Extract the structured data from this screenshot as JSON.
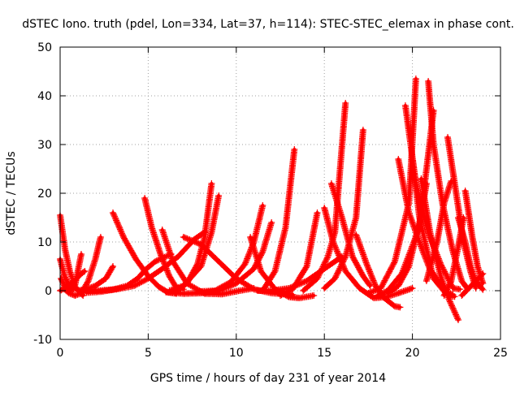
{
  "chart_data": {
    "type": "scatter",
    "title": "dSTEC Iono. truth (pdel, Lon=334, Lat=37, h=114): STEC-STEC_elemax in phase cont.",
    "xlabel": "GPS time / hours of day 231 of year 2014",
    "ylabel": "dSTEC  / TECUs",
    "xlim": [
      0,
      25
    ],
    "ylim": [
      -10,
      50
    ],
    "xticks": [
      0,
      5,
      10,
      15,
      20,
      25
    ],
    "yticks": [
      -10,
      0,
      10,
      20,
      30,
      40,
      50
    ],
    "grid": true,
    "marker": "+",
    "color": "#ff0000",
    "series": [
      {
        "x": [
          0.0,
          0.28,
          0.55,
          0.82,
          1.1,
          1.3
        ],
        "y": [
          15.5,
          8.5,
          4.0,
          1.0,
          -0.3,
          -1.0
        ]
      },
      {
        "x": [
          0.0,
          0.25,
          0.5,
          0.7,
          0.9
        ],
        "y": [
          6.5,
          3.0,
          1.2,
          0.3,
          0.5
        ]
      },
      {
        "x": [
          0.05,
          0.3,
          0.55,
          0.85,
          1.2
        ],
        "y": [
          2.5,
          0.6,
          0.0,
          1.2,
          7.5
        ]
      },
      {
        "x": [
          0.2,
          0.5,
          0.85,
          1.2,
          1.6,
          2.0,
          2.3
        ],
        "y": [
          0.5,
          -0.5,
          -1.0,
          -0.5,
          2.0,
          6.5,
          11.0
        ]
      },
      {
        "x": [
          0.0,
          0.4,
          0.8,
          1.2,
          1.4
        ],
        "y": [
          0.0,
          0.8,
          2.0,
          3.5,
          4.0
        ]
      },
      {
        "x": [
          1.0,
          1.5,
          2.0,
          2.6,
          3.0
        ],
        "y": [
          0.0,
          0.3,
          1.0,
          2.5,
          5.0
        ]
      },
      {
        "x": [
          1.3,
          2.2,
          3.2,
          4.2,
          5.0,
          5.8,
          6.7,
          7.6,
          8.2
        ],
        "y": [
          0.0,
          0.0,
          0.3,
          1.0,
          2.5,
          4.5,
          7.0,
          10.5,
          12.0
        ]
      },
      {
        "x": [
          1.5,
          2.3,
          3.0,
          3.8,
          4.4,
          4.9,
          5.4,
          6.3
        ],
        "y": [
          -0.4,
          -0.2,
          0.2,
          1.0,
          2.5,
          4.5,
          6.0,
          7.5
        ]
      },
      {
        "x": [
          3.0,
          3.6,
          4.3,
          5.0,
          5.6,
          6.1,
          6.6
        ],
        "y": [
          16.0,
          11.0,
          6.5,
          3.0,
          0.8,
          -0.3,
          -0.6
        ]
      },
      {
        "x": [
          4.8,
          5.2,
          5.7,
          6.2,
          6.6,
          7.0
        ],
        "y": [
          19.0,
          13.0,
          7.5,
          3.0,
          0.6,
          0.3
        ]
      },
      {
        "x": [
          5.8,
          6.4,
          7.2,
          8.2,
          9.2,
          10.2,
          11.0
        ],
        "y": [
          12.5,
          6.0,
          1.5,
          -0.6,
          -0.7,
          0.0,
          0.5
        ]
      },
      {
        "x": [
          6.2,
          7.0,
          8.0,
          8.6,
          9.0
        ],
        "y": [
          0.0,
          1.0,
          5.0,
          12.0,
          19.5
        ]
      },
      {
        "x": [
          6.6,
          7.2,
          7.8,
          8.2,
          8.6
        ],
        "y": [
          0.0,
          1.5,
          5.5,
          11.0,
          22.0
        ]
      },
      {
        "x": [
          7.0,
          8.0,
          9.0,
          10.0,
          11.0,
          12.0,
          13.2
        ],
        "y": [
          11.0,
          9.5,
          6.0,
          2.5,
          0.3,
          -0.5,
          -0.8
        ]
      },
      {
        "x": [
          6.0,
          7.0,
          8.0,
          9.0,
          10.0,
          11.0,
          11.5,
          12.0
        ],
        "y": [
          -0.3,
          -0.6,
          -0.5,
          0.0,
          1.5,
          4.5,
          8.0,
          14.0
        ]
      },
      {
        "x": [
          7.8,
          8.8,
          9.7,
          10.5,
          11.0,
          11.5
        ],
        "y": [
          -0.2,
          0.0,
          1.8,
          5.5,
          10.0,
          17.5
        ]
      },
      {
        "x": [
          10.8,
          11.4,
          12.2,
          13.0,
          13.6,
          14.4
        ],
        "y": [
          11.0,
          4.0,
          0.3,
          -1.3,
          -1.5,
          -1.0
        ]
      },
      {
        "x": [
          11.2,
          12.0,
          13.0,
          14.0,
          15.0,
          16.0
        ],
        "y": [
          0.0,
          0.0,
          0.5,
          2.0,
          4.5,
          7.0
        ]
      },
      {
        "x": [
          11.5,
          12.2,
          12.8,
          13.3
        ],
        "y": [
          0.0,
          4.0,
          13.0,
          29.0
        ]
      },
      {
        "x": [
          12.5,
          13.2,
          14.0,
          14.6
        ],
        "y": [
          -1.0,
          0.3,
          5.0,
          16.0
        ]
      },
      {
        "x": [
          13.8,
          14.6,
          15.2,
          15.6,
          16.2
        ],
        "y": [
          0.0,
          2.5,
          7.0,
          12.0,
          38.5
        ]
      },
      {
        "x": [
          15.0,
          15.5,
          16.2,
          17.0,
          17.8,
          18.5,
          19.2,
          20.0
        ],
        "y": [
          17.0,
          10.0,
          4.0,
          0.5,
          -1.5,
          -1.3,
          -0.5,
          0.5
        ]
      },
      {
        "x": [
          15.4,
          16.0,
          16.6,
          17.2,
          17.6
        ],
        "y": [
          22.0,
          15.0,
          7.0,
          3.0,
          1.0
        ]
      },
      {
        "x": [
          15.0,
          15.6,
          16.2,
          16.8,
          17.2
        ],
        "y": [
          0.5,
          2.5,
          7.0,
          15.0,
          33.0
        ]
      },
      {
        "x": [
          16.8,
          17.4,
          17.9,
          18.4,
          19.0,
          19.3
        ],
        "y": [
          11.5,
          5.5,
          1.0,
          -1.5,
          -3.2,
          -3.4
        ]
      },
      {
        "x": [
          17.5,
          18.2,
          19.0,
          19.8,
          20.2
        ],
        "y": [
          -0.5,
          0.5,
          6.0,
          18.0,
          43.5
        ]
      },
      {
        "x": [
          18.0,
          18.6,
          19.4,
          20.4,
          21.2
        ],
        "y": [
          -1.0,
          0.0,
          3.5,
          13.0,
          37.0
        ]
      },
      {
        "x": [
          19.2,
          19.8,
          20.6,
          21.2,
          22.0,
          22.4
        ],
        "y": [
          27.0,
          16.0,
          8.0,
          2.5,
          -1.0,
          -1.2
        ]
      },
      {
        "x": [
          19.6,
          20.2,
          20.9,
          21.6,
          22.3,
          22.7
        ],
        "y": [
          38.0,
          22.0,
          12.0,
          5.5,
          0.5,
          0.3
        ]
      },
      {
        "x": [
          20.0,
          20.4,
          21.1,
          21.8,
          22.3
        ],
        "y": [
          27.0,
          15.0,
          4.0,
          0.0,
          -0.8
        ]
      },
      {
        "x": [
          20.5,
          21.0,
          21.6,
          22.1,
          22.6
        ],
        "y": [
          23.0,
          12.0,
          3.0,
          -2.0,
          -6.0
        ]
      },
      {
        "x": [
          20.9,
          21.2,
          21.7,
          22.3,
          22.8,
          23.1
        ],
        "y": [
          43.0,
          30.0,
          18.0,
          8.0,
          2.0,
          0.5
        ]
      },
      {
        "x": [
          22.0,
          22.4,
          22.9,
          23.3,
          23.6
        ],
        "y": [
          31.5,
          22.0,
          10.0,
          4.0,
          0.5
        ]
      },
      {
        "x": [
          22.6,
          23.0,
          23.3,
          23.6,
          24.0
        ],
        "y": [
          15.0,
          10.0,
          5.0,
          2.0,
          0.2
        ]
      },
      {
        "x": [
          23.0,
          23.4,
          23.7,
          24.0
        ],
        "y": [
          20.5,
          11.0,
          5.0,
          1.5
        ]
      },
      {
        "x": [
          22.8,
          23.2,
          23.6,
          24.0
        ],
        "y": [
          -1.0,
          0.5,
          2.0,
          3.5
        ]
      },
      {
        "x": [
          21.8,
          22.2,
          22.6,
          22.9
        ],
        "y": [
          -1.0,
          2.0,
          9.0,
          15.0
        ]
      },
      {
        "x": [
          20.8,
          21.4,
          21.8,
          22.2
        ],
        "y": [
          2.0,
          10.0,
          18.0,
          22.5
        ]
      },
      {
        "x": [
          18.6,
          19.2,
          19.8,
          20.4,
          20.8
        ],
        "y": [
          -0.5,
          1.0,
          5.0,
          14.0,
          22.0
        ]
      }
    ]
  }
}
